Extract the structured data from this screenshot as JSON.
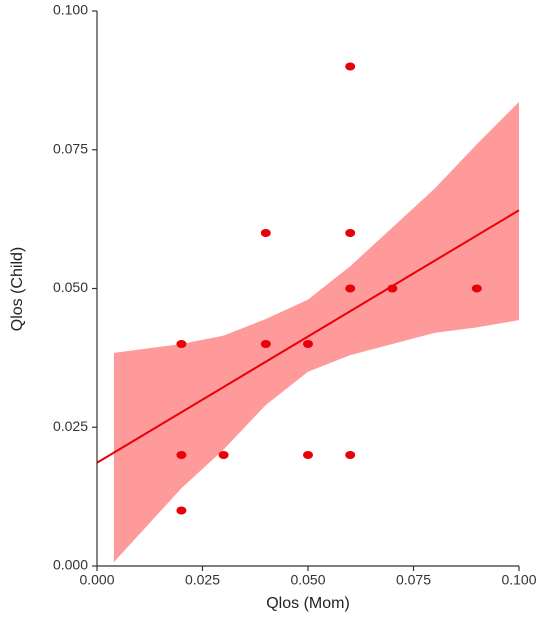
{
  "chart_data": {
    "type": "scatter",
    "x_label": "Qlos (Mom)",
    "y_label": "Qlos (Child)",
    "x": [
      0.02,
      0.02,
      0.02,
      0.03,
      0.04,
      0.04,
      0.05,
      0.05,
      0.06,
      0.06,
      0.06,
      0.06,
      0.07,
      0.09
    ],
    "values": [
      0.04,
      0.02,
      0.01,
      0.02,
      0.06,
      0.04,
      0.04,
      0.02,
      0.09,
      0.06,
      0.05,
      0.02,
      0.05,
      0.05
    ],
    "color": "#e8000b",
    "fit": {
      "x": [
        0,
        0.1
      ],
      "values": [
        0.0186,
        0.0641
      ],
      "color": "#e8000b"
    },
    "band": {
      "x": [
        0.004,
        0.02,
        0.03,
        0.04,
        0.05,
        0.06,
        0.07,
        0.08,
        0.09,
        0.1
      ],
      "upper": [
        0.0384,
        0.04,
        0.0415,
        0.0445,
        0.048,
        0.054,
        0.061,
        0.068,
        0.076,
        0.0836
      ],
      "lower": [
        0.0007,
        0.014,
        0.021,
        0.029,
        0.035,
        0.038,
        0.04,
        0.042,
        0.043,
        0.0443
      ],
      "color": "#ff9a9a"
    },
    "xlim": [
      0,
      0.1
    ],
    "ylim": [
      0,
      0.1
    ],
    "xticks": [
      {
        "value": 0,
        "label": "0.000"
      },
      {
        "value": 0.025,
        "label": "0.025"
      },
      {
        "value": 0.05,
        "label": "0.050"
      },
      {
        "value": 0.075,
        "label": "0.075"
      },
      {
        "value": 0.1,
        "label": "0.100"
      }
    ],
    "yticks": [
      {
        "value": 0,
        "label": "0.000"
      },
      {
        "value": 0.025,
        "label": "0.025"
      },
      {
        "value": 0.05,
        "label": "0.050"
      },
      {
        "value": 0.075,
        "label": "0.075"
      },
      {
        "value": 0.1,
        "label": "0.100"
      }
    ]
  }
}
